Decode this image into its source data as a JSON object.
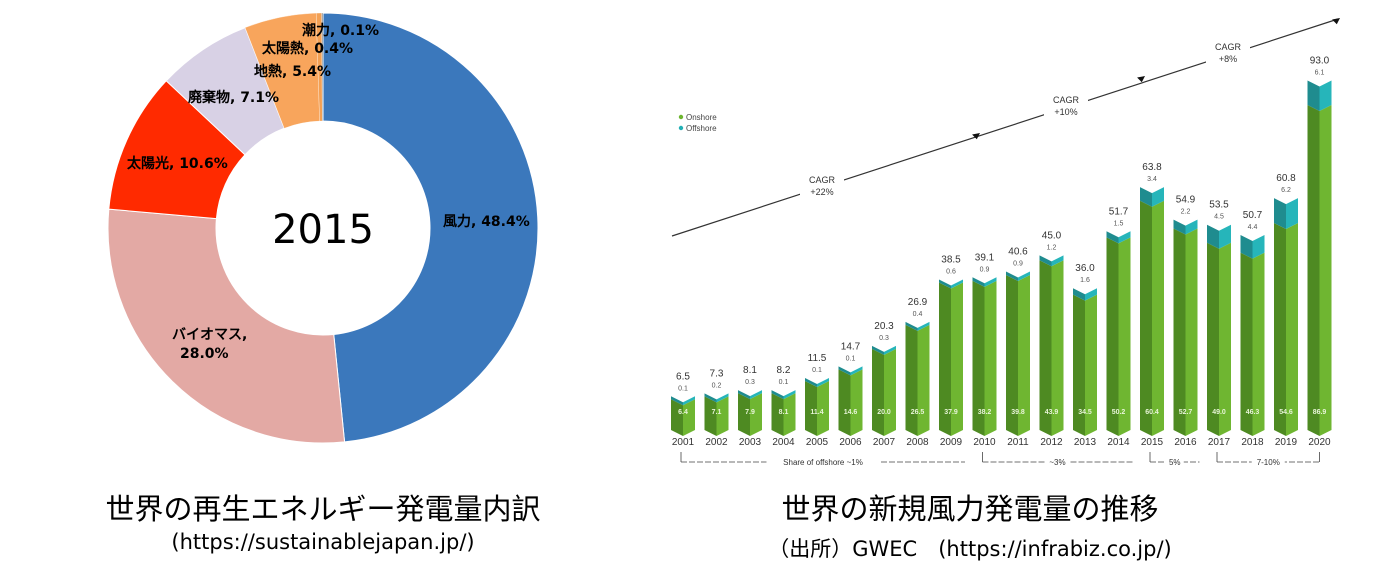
{
  "chart_data": [
    {
      "type": "pie",
      "center_label": "2015",
      "slices": [
        {
          "label": "風力",
          "value": 48.4,
          "text": "風力, 48.4%",
          "color": "#3b78bc"
        },
        {
          "label": "バイオマス",
          "value": 28.0,
          "text": "バイオマス,",
          "text2": "28.0%",
          "color": "#e3a9a4"
        },
        {
          "label": "太陽光",
          "value": 10.6,
          "text": "太陽光, 10.6%",
          "color": "#ff2a00"
        },
        {
          "label": "廃棄物",
          "value": 7.1,
          "text": "廃棄物, 7.1%",
          "color": "#d8d1e5"
        },
        {
          "label": "地熱",
          "value": 5.4,
          "text": "地熱, 5.4%",
          "color": "#f8a55c"
        },
        {
          "label": "太陽熱",
          "value": 0.4,
          "text": "太陽熱, 0.4%",
          "color": "#f3a054"
        },
        {
          "label": "潮力",
          "value": 0.1,
          "text": "潮力, 0.1%",
          "color": "#9a9a9a"
        }
      ],
      "caption": "世界の再生エネルギー発電量内訳",
      "source": "(https://sustainablejapan.jp/)"
    },
    {
      "type": "bar",
      "stacked": true,
      "categories": [
        "2001",
        "2002",
        "2003",
        "2004",
        "2005",
        "2006",
        "2007",
        "2008",
        "2009",
        "2010",
        "2011",
        "2012",
        "2013",
        "2014",
        "2015",
        "2016",
        "2017",
        "2018",
        "2019",
        "2020"
      ],
      "totals": [
        "6.5",
        "7.3",
        "8.1",
        "8.2",
        "11.5",
        "14.7",
        "20.3",
        "26.9",
        "38.5",
        "39.1",
        "40.6",
        "45.0",
        "36.0",
        "51.7",
        "63.8",
        "54.9",
        "53.5",
        "50.7",
        "60.8",
        "93.0"
      ],
      "series": [
        {
          "name": "Onshore",
          "color": "#6db52f",
          "values": [
            "6.4",
            "7.1",
            "7.9",
            "8.1",
            "11.4",
            "14.6",
            "20.0",
            "26.5",
            "37.9",
            "38.2",
            "39.8",
            "43.9",
            "34.5",
            "50.2",
            "60.4",
            "52.7",
            "49.0",
            "46.3",
            "54.6",
            "86.9"
          ]
        },
        {
          "name": "Offshore",
          "color": "#22b0b5",
          "values": [
            "0.1",
            "0.2",
            "0.3",
            "0.1",
            "0.1",
            "0.1",
            "0.3",
            "0.4",
            "0.6",
            "0.9",
            "0.9",
            "1.2",
            "1.6",
            "1.5",
            "3.4",
            "2.2",
            "4.5",
            "4.4",
            "6.2",
            "6.1"
          ]
        }
      ],
      "legend_position": "top-left",
      "cagr": [
        {
          "line1": "CAGR",
          "line2": "+22%"
        },
        {
          "line1": "CAGR",
          "line2": "+10%"
        },
        {
          "line1": "CAGR",
          "line2": "+8%"
        }
      ],
      "offshore_share": [
        {
          "label": "Share of offshore ~1%",
          "from": "2001",
          "to": "2009"
        },
        {
          "label": "~3%",
          "from": "2010",
          "to": "2014"
        },
        {
          "label": "5%",
          "from": "2015",
          "to": "2016"
        },
        {
          "label": "7-10%",
          "from": "2017",
          "to": "2020"
        }
      ],
      "caption": "世界の新規風力発電量の推移",
      "source": "（出所）GWEC　(https://infrabiz.co.jp/)"
    }
  ]
}
